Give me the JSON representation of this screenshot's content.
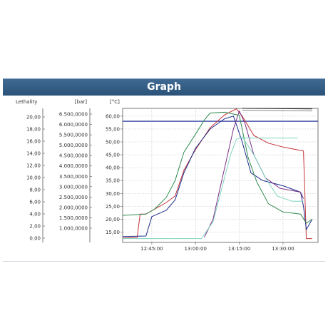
{
  "header": {
    "title": "Graph"
  },
  "axes": {
    "lethality": {
      "label": "Lethality",
      "ticks": [
        "20,00",
        "18,00",
        "16,00",
        "14,00",
        "12,00",
        "10,00",
        "8,00",
        "6,00",
        "4,00",
        "2,00",
        "0,00"
      ]
    },
    "pressure": {
      "label": "[bar]",
      "ticks": [
        "6.500,0000",
        "6.000,0000",
        "5.500,0000",
        "5.000,0000",
        "4.500,0000",
        "4.000,0000",
        "3.500,0000",
        "3.000,0000",
        "2.500,0000",
        "2.000,0000",
        "1.500,0000",
        "1.000,0000"
      ]
    },
    "temperature": {
      "label": "[°C]",
      "ticks": [
        "60,00",
        "55,00",
        "50,00",
        "45,00",
        "40,00",
        "35,00",
        "30,00",
        "25,00",
        "20,00",
        "15,00"
      ]
    }
  },
  "chart_data": {
    "type": "line",
    "x_unit": "time",
    "x_ticks": [
      "12:45:00",
      "13:00:00",
      "13:15:00",
      "13:30:00"
    ],
    "xlim": [
      "12:35:00",
      "13:42:00"
    ],
    "ylim": [
      11,
      63
    ],
    "y_ticks": [
      15,
      20,
      25,
      30,
      35,
      40,
      45,
      50,
      55,
      60
    ],
    "grid": true,
    "reference_line": {
      "y": 58,
      "color": "#2f3fa0"
    },
    "series": [
      {
        "color": "#c4353b",
        "values": [
          [
            "12:35:00",
            12.7
          ],
          [
            "12:40:00",
            12.9
          ],
          [
            "12:41:00",
            22
          ],
          [
            "12:43:00",
            22
          ],
          [
            "12:50:00",
            26.5
          ],
          [
            "12:53:00",
            29
          ],
          [
            "12:56:00",
            39
          ],
          [
            "13:00:00",
            47
          ],
          [
            "13:05:00",
            55.5
          ],
          [
            "13:10:00",
            60.5
          ],
          [
            "13:14:00",
            62.8
          ],
          [
            "13:16:00",
            60
          ],
          [
            "13:20:00",
            52.5
          ],
          [
            "13:25:00",
            49.5
          ],
          [
            "13:30:00",
            48
          ],
          [
            "13:37:00",
            46.5
          ],
          [
            "13:38:00",
            12.5
          ],
          [
            "13:40:00",
            12.5
          ]
        ]
      },
      {
        "color": "#1d2d8a",
        "values": [
          [
            "12:35:00",
            13.3
          ],
          [
            "12:43:00",
            13.5
          ],
          [
            "12:45:00",
            21
          ],
          [
            "12:50:00",
            23.5
          ],
          [
            "12:53:00",
            27.5
          ],
          [
            "12:56:00",
            38
          ],
          [
            "13:00:00",
            47.5
          ],
          [
            "13:05:00",
            55
          ],
          [
            "13:10:00",
            59
          ],
          [
            "13:13:00",
            60
          ],
          [
            "13:16:00",
            50
          ],
          [
            "13:19:00",
            38
          ],
          [
            "13:23:00",
            35
          ],
          [
            "13:30:00",
            33
          ],
          [
            "13:36:00",
            30.5
          ],
          [
            "13:37:00",
            25
          ],
          [
            "13:38:00",
            16
          ],
          [
            "13:40:00",
            20
          ]
        ]
      },
      {
        "color": "#7a2f86",
        "values": [
          [
            "13:03:00",
            13
          ],
          [
            "13:06:00",
            20
          ],
          [
            "13:09:00",
            35
          ],
          [
            "13:13:00",
            55
          ],
          [
            "13:15:00",
            62
          ],
          [
            "13:17:00",
            57
          ],
          [
            "13:20:00",
            45
          ],
          [
            "13:24:00",
            36
          ],
          [
            "13:29:00",
            32
          ],
          [
            "13:36:00",
            30.5
          ],
          [
            "13:37:00",
            28
          ]
        ]
      },
      {
        "color": "#2f8a4f",
        "values": [
          [
            "12:35:00",
            21.5
          ],
          [
            "12:40:00",
            21.8
          ],
          [
            "12:43:00",
            22
          ],
          [
            "12:46:00",
            24
          ],
          [
            "12:50:00",
            28.5
          ],
          [
            "12:53:00",
            35
          ],
          [
            "12:56:00",
            46
          ],
          [
            "13:00:00",
            53
          ],
          [
            "13:03:00",
            58.5
          ],
          [
            "13:05:00",
            61.2
          ],
          [
            "13:10:00",
            61.5
          ],
          [
            "13:15:00",
            60.3
          ],
          [
            "13:18:00",
            44
          ],
          [
            "13:21:00",
            34.5
          ],
          [
            "13:25:00",
            26
          ],
          [
            "13:30:00",
            22.8
          ],
          [
            "13:36:00",
            22
          ],
          [
            "13:38:00",
            18.5
          ],
          [
            "13:40:00",
            20
          ]
        ]
      },
      {
        "color": "#7fd4bf",
        "values": [
          [
            "12:35:00",
            12.5
          ],
          [
            "13:02:00",
            12.5
          ],
          [
            "13:06:00",
            19
          ],
          [
            "13:09:00",
            32
          ],
          [
            "13:12:00",
            45
          ],
          [
            "13:14:00",
            51
          ],
          [
            "13:16:00",
            52
          ],
          [
            "13:20:00",
            45
          ],
          [
            "13:24:00",
            36
          ],
          [
            "13:28:00",
            29
          ],
          [
            "13:33:00",
            27
          ],
          [
            "13:37:00",
            27
          ]
        ]
      },
      {
        "color": "#222222",
        "values": [
          [
            "13:16:00",
            63
          ],
          [
            "13:40:00",
            62.8
          ]
        ]
      },
      {
        "color": "#888888",
        "values": [
          [
            "13:16:00",
            62.3
          ],
          [
            "13:40:00",
            62
          ]
        ]
      },
      {
        "color": "#7fd4bf",
        "values": [
          [
            "13:16:00",
            51.5
          ],
          [
            "13:35:00",
            51.5
          ]
        ]
      }
    ]
  }
}
